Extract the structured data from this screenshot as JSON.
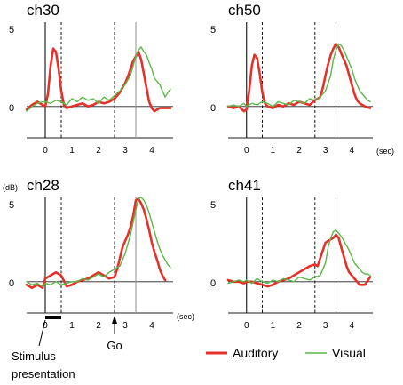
{
  "chart_data": {
    "type": "line",
    "y_unit": "(dB)",
    "x_unit": "(sec)",
    "legend": [
      {
        "name": "Auditory",
        "color": "#e6302a"
      },
      {
        "name": "Visual",
        "color": "#5ab947"
      }
    ],
    "annotations": {
      "stimulus": "Stimulus\npresentation",
      "go": "Go"
    },
    "panels": [
      {
        "title": "ch30",
        "xlim": [
          -0.7,
          4.8
        ],
        "ylim": [
          -2,
          5.5
        ],
        "yticks": [
          "0",
          "5"
        ],
        "xticks": [
          "0",
          "1",
          "2",
          "3",
          "4"
        ],
        "dashed": [
          0.6,
          2.6
        ],
        "solid": [
          0,
          3.4
        ],
        "series": [
          {
            "name": "Auditory",
            "x": [
              -0.7,
              -0.5,
              -0.3,
              -0.1,
              0,
              0.1,
              0.2,
              0.3,
              0.4,
              0.5,
              0.6,
              0.7,
              0.8,
              1.0,
              1.2,
              1.4,
              1.6,
              1.8,
              2.0,
              2.2,
              2.4,
              2.6,
              2.8,
              3.0,
              3.1,
              3.2,
              3.3,
              3.4,
              3.5,
              3.6,
              3.7,
              3.8,
              3.9,
              4.0,
              4.1,
              4.2,
              4.3,
              4.5,
              4.7
            ],
            "y": [
              -0.2,
              0.1,
              0.3,
              0.1,
              0.0,
              0.8,
              2.6,
              3.7,
              3.5,
              2.4,
              1.0,
              0.1,
              -0.1,
              0.0,
              0.1,
              0.2,
              0.0,
              0.1,
              0.3,
              0.2,
              0.3,
              0.5,
              0.9,
              1.5,
              1.9,
              2.4,
              2.9,
              3.2,
              3.5,
              3.0,
              2.1,
              1.2,
              0.3,
              -0.1,
              -0.3,
              -0.2,
              -0.1,
              -0.1,
              -0.1
            ]
          },
          {
            "name": "Visual",
            "x": [
              -0.7,
              -0.5,
              -0.3,
              -0.1,
              0,
              0.2,
              0.4,
              0.6,
              0.8,
              1.0,
              1.2,
              1.4,
              1.6,
              1.8,
              2.0,
              2.2,
              2.4,
              2.6,
              2.8,
              3.0,
              3.2,
              3.3,
              3.4,
              3.5,
              3.6,
              3.7,
              3.8,
              3.9,
              4.0,
              4.1,
              4.2,
              4.3,
              4.4,
              4.5,
              4.6,
              4.7
            ],
            "y": [
              -0.3,
              0.0,
              0.2,
              0.3,
              0.3,
              0.2,
              0.4,
              0.3,
              0.1,
              0.5,
              0.3,
              0.6,
              0.4,
              0.5,
              0.2,
              0.6,
              0.4,
              0.7,
              1.0,
              1.4,
              2.0,
              2.6,
              3.2,
              3.6,
              3.8,
              3.5,
              3.3,
              2.8,
              2.4,
              1.8,
              1.6,
              1.4,
              1.0,
              0.6,
              0.9,
              1.1
            ]
          }
        ]
      },
      {
        "title": "ch50",
        "xlim": [
          -0.7,
          4.8
        ],
        "ylim": [
          -2,
          5.5
        ],
        "yticks": [
          "0",
          "5"
        ],
        "xticks": [
          "0",
          "1",
          "2",
          "3",
          "4"
        ],
        "dashed": [
          0.6,
          2.6
        ],
        "solid": [
          0,
          3.4
        ],
        "series": [
          {
            "name": "Auditory",
            "x": [
              -0.7,
              -0.5,
              -0.3,
              -0.1,
              0,
              0.1,
              0.2,
              0.3,
              0.4,
              0.5,
              0.6,
              0.7,
              0.8,
              1.0,
              1.2,
              1.4,
              1.6,
              1.8,
              2.0,
              2.2,
              2.4,
              2.6,
              2.8,
              2.9,
              3.0,
              3.1,
              3.2,
              3.3,
              3.4,
              3.5,
              3.6,
              3.7,
              3.8,
              3.9,
              4.0,
              4.1,
              4.2,
              4.3,
              4.5,
              4.7
            ],
            "y": [
              0.0,
              -0.1,
              0.0,
              -0.3,
              -0.2,
              1.0,
              2.6,
              3.3,
              3.1,
              2.1,
              0.9,
              0.2,
              0.0,
              -0.1,
              0.1,
              0.0,
              0.2,
              0.1,
              0.3,
              0.2,
              0.1,
              0.4,
              0.6,
              1.2,
              2.0,
              2.7,
              3.3,
              3.7,
              4.0,
              3.8,
              3.4,
              3.0,
              2.6,
              2.0,
              1.4,
              0.8,
              0.4,
              0.2,
              0.0,
              -0.1
            ]
          },
          {
            "name": "Visual",
            "x": [
              -0.7,
              -0.5,
              -0.3,
              -0.1,
              0,
              0.2,
              0.4,
              0.6,
              0.8,
              1.0,
              1.2,
              1.4,
              1.6,
              1.8,
              2.0,
              2.2,
              2.4,
              2.6,
              2.8,
              3.0,
              3.2,
              3.3,
              3.4,
              3.5,
              3.6,
              3.7,
              3.8,
              3.9,
              4.0,
              4.1,
              4.2,
              4.3,
              4.4,
              4.5,
              4.6,
              4.7
            ],
            "y": [
              0.0,
              0.1,
              0.0,
              0.2,
              0.0,
              0.2,
              0.1,
              0.3,
              0.2,
              0.0,
              0.3,
              0.2,
              0.1,
              0.4,
              0.3,
              0.2,
              0.5,
              0.4,
              0.6,
              1.0,
              2.0,
              3.0,
              3.6,
              4.0,
              3.9,
              3.6,
              3.2,
              2.8,
              2.4,
              1.8,
              1.4,
              1.0,
              0.8,
              0.6,
              0.4,
              0.3
            ]
          }
        ]
      },
      {
        "title": "ch28",
        "xlim": [
          -0.7,
          4.8
        ],
        "ylim": [
          -2,
          5.5
        ],
        "yticks": [
          "0",
          "5"
        ],
        "xticks": [
          "0",
          "1",
          "2",
          "3",
          "4"
        ],
        "dashed": [
          0.6,
          2.6
        ],
        "solid": [
          0,
          3.4
        ],
        "series": [
          {
            "name": "Auditory",
            "x": [
              -0.7,
              -0.5,
              -0.3,
              -0.1,
              0,
              0.2,
              0.4,
              0.6,
              0.8,
              1.0,
              1.2,
              1.4,
              1.6,
              1.8,
              2.0,
              2.2,
              2.4,
              2.6,
              2.7,
              2.8,
              2.9,
              3.0,
              3.1,
              3.2,
              3.3,
              3.4,
              3.5,
              3.6,
              3.7,
              3.8,
              3.9,
              4.0,
              4.1,
              4.2,
              4.3,
              4.4,
              4.5
            ],
            "y": [
              -0.2,
              -0.4,
              -0.2,
              -0.4,
              0.2,
              0.4,
              0.6,
              0.4,
              -0.3,
              -0.2,
              0.0,
              0.1,
              0.2,
              0.4,
              0.6,
              0.4,
              0.2,
              0.3,
              0.8,
              1.5,
              2.2,
              2.6,
              3.0,
              3.5,
              4.2,
              5.2,
              5.3,
              5.0,
              4.6,
              4.0,
              3.3,
              2.5,
              1.9,
              1.4,
              0.8,
              0.4,
              0.1
            ]
          },
          {
            "name": "Visual",
            "x": [
              -0.7,
              -0.5,
              -0.3,
              -0.1,
              0,
              0.2,
              0.4,
              0.6,
              0.8,
              1.0,
              1.2,
              1.4,
              1.6,
              1.8,
              2.0,
              2.2,
              2.4,
              2.6,
              2.8,
              3.0,
              3.2,
              3.4,
              3.5,
              3.6,
              3.7,
              3.8,
              3.9,
              4.0,
              4.1,
              4.2,
              4.3,
              4.4,
              4.5,
              4.6,
              4.7
            ],
            "y": [
              0.0,
              -0.2,
              -0.1,
              -0.3,
              -0.1,
              -0.2,
              0.0,
              -0.2,
              -0.1,
              0.0,
              0.0,
              0.2,
              0.1,
              0.3,
              0.5,
              0.3,
              0.6,
              0.8,
              1.0,
              1.8,
              3.0,
              4.6,
              5.3,
              5.4,
              5.2,
              4.9,
              4.4,
              3.8,
              3.2,
              2.6,
              2.1,
              1.7,
              1.4,
              1.1,
              0.9
            ]
          }
        ]
      },
      {
        "title": "ch41",
        "xlim": [
          -0.7,
          4.8
        ],
        "ylim": [
          -2,
          5.5
        ],
        "yticks": [
          "0",
          "5"
        ],
        "xticks": [
          "0",
          "1",
          "2",
          "3",
          "4"
        ],
        "dashed": [
          0.6,
          2.6
        ],
        "solid": [
          0,
          3.4
        ],
        "series": [
          {
            "name": "Auditory",
            "x": [
              -0.7,
              -0.5,
              -0.3,
              -0.1,
              0,
              0.2,
              0.4,
              0.6,
              0.8,
              1.0,
              1.2,
              1.4,
              1.6,
              1.8,
              2.0,
              2.2,
              2.4,
              2.6,
              2.7,
              2.8,
              2.9,
              3.0,
              3.1,
              3.2,
              3.3,
              3.4,
              3.5,
              3.6,
              3.7,
              3.8,
              3.9,
              4.0,
              4.1,
              4.2,
              4.3,
              4.5,
              4.7
            ],
            "y": [
              0.1,
              0.0,
              0.0,
              -0.1,
              0.0,
              0.0,
              -0.1,
              -0.2,
              -0.3,
              -0.2,
              0.0,
              0.1,
              0.2,
              0.4,
              0.6,
              0.8,
              1.0,
              1.1,
              1.0,
              1.5,
              2.0,
              2.5,
              2.6,
              2.7,
              2.8,
              3.0,
              2.8,
              2.2,
              1.6,
              1.0,
              0.6,
              0.4,
              0.2,
              0.0,
              -0.2,
              -0.2,
              0.3
            ]
          },
          {
            "name": "Visual",
            "x": [
              -0.7,
              -0.5,
              -0.3,
              -0.1,
              0,
              0.2,
              0.4,
              0.6,
              0.8,
              1.0,
              1.2,
              1.4,
              1.6,
              1.8,
              2.0,
              2.2,
              2.4,
              2.6,
              2.8,
              3.0,
              3.1,
              3.2,
              3.3,
              3.4,
              3.5,
              3.6,
              3.7,
              3.8,
              3.9,
              4.0,
              4.1,
              4.2,
              4.3,
              4.4,
              4.5,
              4.6,
              4.7
            ],
            "y": [
              -0.1,
              0.0,
              0.1,
              0.0,
              0.1,
              -0.1,
              0.2,
              0.0,
              -0.1,
              0.1,
              0.0,
              0.2,
              0.1,
              0.0,
              0.3,
              0.2,
              0.1,
              0.3,
              0.4,
              1.2,
              2.2,
              2.8,
              3.2,
              3.3,
              3.1,
              2.9,
              2.6,
              2.3,
              2.0,
              1.6,
              1.2,
              1.0,
              0.8,
              0.6,
              0.5,
              0.5,
              0.4
            ]
          }
        ]
      }
    ]
  }
}
